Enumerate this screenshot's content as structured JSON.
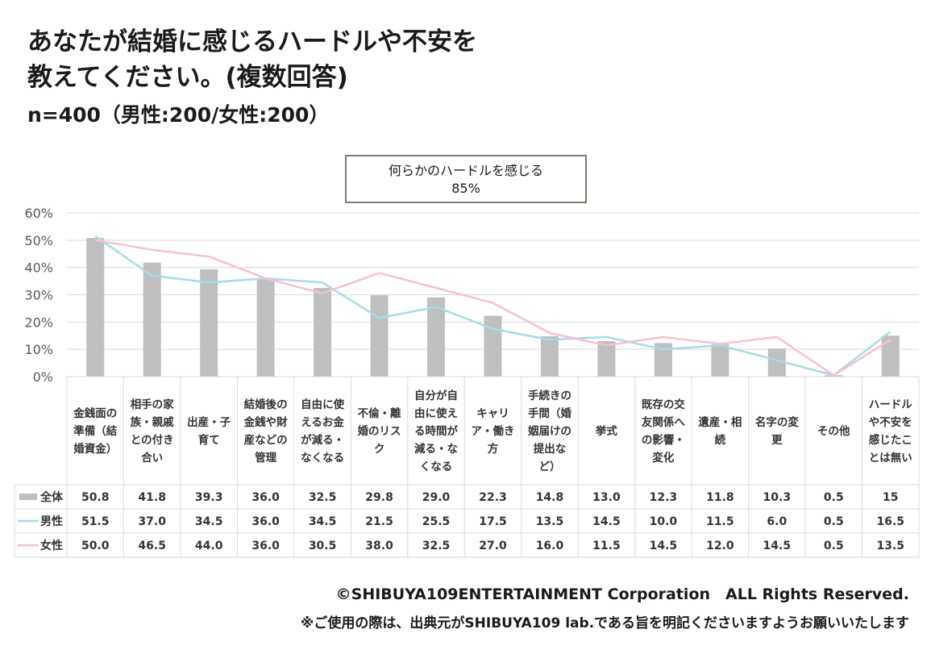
{
  "header": {
    "title": "あなたが結婚に感じるハードルや不安を\n教えてください。(複数回答)",
    "sample": "n=400（男性:200/女性:200）"
  },
  "callout": {
    "line1": "何らかのハードルを感じる",
    "line2": "85%"
  },
  "chart_data": {
    "type": "bar",
    "categories": [
      "金銭面の準備（結婚資金）",
      "相手の家族・親戚との付き合い",
      "出産・子育て",
      "結婚後の金銭や財産などの管理",
      "自由に使えるお金が減る・なくなる",
      "不倫・離婚のリスク",
      "自分が自由に使える時間が減る・なくなる",
      "キャリア・働き方",
      "手続きの手間（婚姻届けの提出など）",
      "挙式",
      "既存の交友関係への影響・変化",
      "遺産・相続",
      "名字の変更",
      "その他",
      "ハードルや不安を感じたことは無い"
    ],
    "category_lines": [
      [
        "金銭面の",
        "準備（結",
        "婚資金）"
      ],
      [
        "相手の家",
        "族・親戚",
        "との付き",
        "合い"
      ],
      [
        "出産・子",
        "育て"
      ],
      [
        "結婚後の",
        "金銭や財",
        "産などの",
        "管理"
      ],
      [
        "自由に使",
        "えるお金",
        "が減る・",
        "なくなる"
      ],
      [
        "不倫・離",
        "婚のリス",
        "ク"
      ],
      [
        "自分が自",
        "由に使え",
        "る時間が",
        "減る・な",
        "くなる"
      ],
      [
        "キャリ",
        "ア・働き",
        "方"
      ],
      [
        "手続きの",
        "手間（婚",
        "姻届けの",
        "提出な",
        "ど）"
      ],
      [
        "挙式"
      ],
      [
        "既存の交",
        "友関係へ",
        "の影響・",
        "変化"
      ],
      [
        "遺産・相",
        "続"
      ],
      [
        "名字の変",
        "更"
      ],
      [
        "その他"
      ],
      [
        "ハードル",
        "や不安を",
        "感じたこ",
        "とは無い"
      ]
    ],
    "series": [
      {
        "name": "全体",
        "kind": "bar",
        "color": "#bfbfbf",
        "values": [
          50.8,
          41.8,
          39.3,
          36.0,
          32.5,
          29.8,
          29.0,
          22.3,
          14.8,
          13.0,
          12.3,
          11.8,
          10.3,
          0.5,
          15
        ],
        "labels": [
          "50.8",
          "41.8",
          "39.3",
          "36.0",
          "32.5",
          "29.8",
          "29.0",
          "22.3",
          "14.8",
          "13.0",
          "12.3",
          "11.8",
          "10.3",
          "0.5",
          "15"
        ]
      },
      {
        "name": "男性",
        "kind": "line",
        "color": "#a8dbe8",
        "values": [
          51.5,
          37.0,
          34.5,
          36.0,
          34.5,
          21.5,
          25.5,
          17.5,
          13.5,
          14.5,
          10.0,
          11.5,
          6.0,
          0.5,
          16.5
        ],
        "labels": [
          "51.5",
          "37.0",
          "34.5",
          "36.0",
          "34.5",
          "21.5",
          "25.5",
          "17.5",
          "13.5",
          "14.5",
          "10.0",
          "11.5",
          "6.0",
          "0.5",
          "16.5"
        ]
      },
      {
        "name": "女性",
        "kind": "line",
        "color": "#f6c0d4",
        "values": [
          50.0,
          46.5,
          44.0,
          36.0,
          30.5,
          38.0,
          32.5,
          27.0,
          16.0,
          11.5,
          14.5,
          12.0,
          14.5,
          0.5,
          13.5
        ],
        "labels": [
          "50.0",
          "46.5",
          "44.0",
          "36.0",
          "30.5",
          "38.0",
          "32.5",
          "27.0",
          "16.0",
          "11.5",
          "14.5",
          "12.0",
          "14.5",
          "0.5",
          "13.5"
        ]
      }
    ],
    "ylim": [
      0,
      60
    ],
    "yticks": [
      "0%",
      "10%",
      "20%",
      "30%",
      "40%",
      "50%",
      "60%"
    ],
    "grid": true,
    "legend": "data-table"
  },
  "footer": {
    "copyright": "©SHIBUYA109ENTERTAINMENT Corporation　ALL Rights Reserved.",
    "notice": "※ご使用の際は、出典元がSHIBUYA109 lab.である旨を明記くださいますようお願いいたします"
  }
}
